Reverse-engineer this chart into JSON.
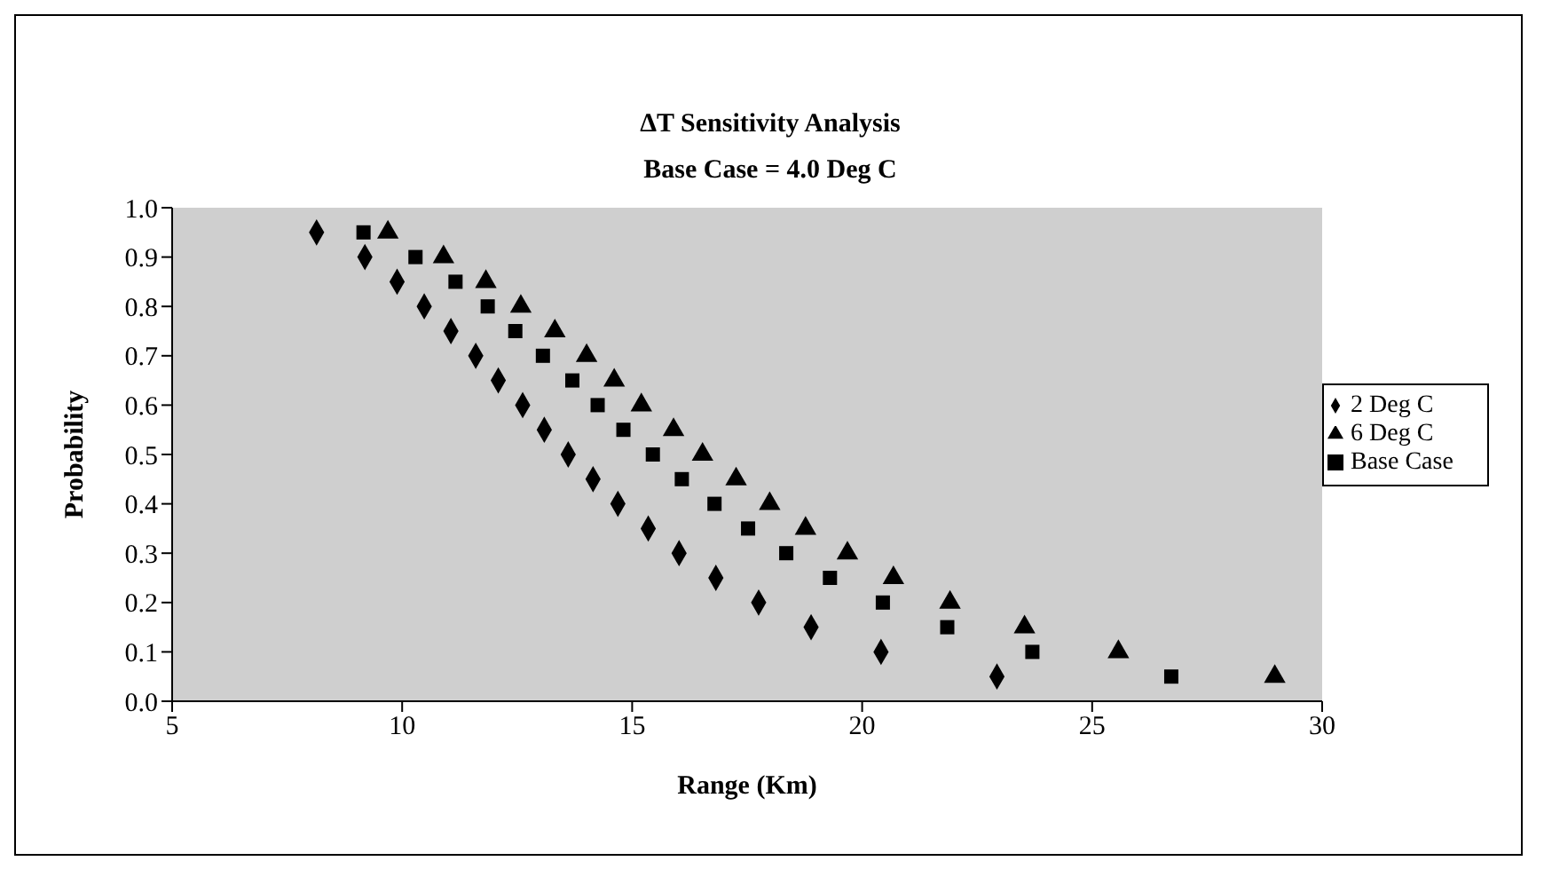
{
  "chart_data": {
    "type": "scatter",
    "title": "ΔT Sensitivity Analysis",
    "subtitle": "Base Case = 4.0 Deg C",
    "xlabel": "Range (Km)",
    "ylabel": "Probability",
    "xlim": [
      5,
      30
    ],
    "xticks": [
      5,
      10,
      15,
      20,
      25,
      30
    ],
    "ylim": [
      0,
      1
    ],
    "yticks": [
      {
        "value": 0,
        "label": "0.0"
      },
      {
        "value": 0.1,
        "label": "0.1"
      },
      {
        "value": 0.2,
        "label": "0.2"
      },
      {
        "value": 0.3,
        "label": "0.3"
      },
      {
        "value": 0.4,
        "label": "0.4"
      },
      {
        "value": 0.5,
        "label": "0.5"
      },
      {
        "value": 0.6,
        "label": "0.6"
      },
      {
        "value": 0.7,
        "label": "0.7"
      },
      {
        "value": 0.8,
        "label": "0.8"
      },
      {
        "value": 0.9,
        "label": "0.9"
      },
      {
        "value": 1,
        "label": "1.0"
      }
    ],
    "grid": false,
    "legend": "right",
    "series": [
      {
        "name": "2 Deg C",
        "color": "#000000",
        "marker": "diamond",
        "x": [
          8.14,
          9.19,
          9.89,
          10.48,
          11.06,
          11.6,
          12.09,
          12.62,
          13.09,
          13.61,
          14.15,
          14.69,
          15.35,
          16.02,
          16.82,
          17.75,
          18.89,
          20.41,
          22.93
        ],
        "values": [
          0.95,
          0.9,
          0.85,
          0.8,
          0.75,
          0.7,
          0.65,
          0.6,
          0.55,
          0.5,
          0.45,
          0.4,
          0.35,
          0.3,
          0.25,
          0.2,
          0.15,
          0.1,
          0.05
        ]
      },
      {
        "name": "Base Case",
        "color": "#000000",
        "marker": "square",
        "x": [
          9.16,
          10.29,
          11.16,
          11.86,
          12.46,
          13.06,
          13.7,
          14.25,
          14.81,
          15.45,
          16.08,
          16.79,
          17.52,
          18.35,
          19.3,
          20.45,
          21.85,
          23.7,
          26.72
        ],
        "values": [
          0.95,
          0.9,
          0.85,
          0.8,
          0.75,
          0.7,
          0.65,
          0.6,
          0.55,
          0.5,
          0.45,
          0.4,
          0.35,
          0.3,
          0.25,
          0.2,
          0.15,
          0.1,
          0.05
        ]
      },
      {
        "name": "6 Deg C",
        "color": "#000000",
        "marker": "triangle",
        "x": [
          9.69,
          10.9,
          11.82,
          12.58,
          13.32,
          14.01,
          14.61,
          15.2,
          15.9,
          16.53,
          17.26,
          17.99,
          18.77,
          19.68,
          20.68,
          21.91,
          23.53,
          25.57,
          28.97
        ],
        "values": [
          0.95,
          0.9,
          0.85,
          0.8,
          0.75,
          0.7,
          0.65,
          0.6,
          0.55,
          0.5,
          0.45,
          0.4,
          0.35,
          0.3,
          0.25,
          0.2,
          0.15,
          0.1,
          0.05
        ]
      }
    ]
  }
}
